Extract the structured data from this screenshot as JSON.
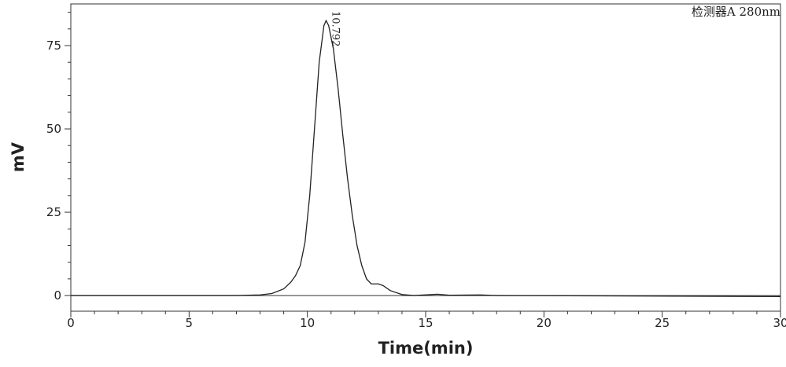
{
  "chart_data": {
    "type": "line",
    "legend_text": "检测器A 280nm",
    "x_label": "Time(min)",
    "y_label": "mV",
    "xlim": [
      0,
      30
    ],
    "ylim": [
      -4.7,
      87.5
    ],
    "xticks": [
      0,
      5,
      10,
      15,
      20,
      25,
      30
    ],
    "yticks": [
      0,
      25,
      50,
      75
    ],
    "xminorticks": [
      1,
      2,
      3,
      4,
      6,
      7,
      8,
      9,
      11,
      12,
      13,
      14,
      16,
      17,
      18,
      19,
      21,
      22,
      23,
      24,
      26,
      27,
      28,
      29
    ],
    "yminorticks": [
      5,
      10,
      15,
      20,
      30,
      35,
      40,
      45,
      55,
      60,
      65,
      70,
      80,
      85
    ],
    "peak_labels": [
      10.792
    ],
    "series": [
      {
        "color": "#222222",
        "x": [
          0,
          7,
          8,
          8.5,
          9,
          9.3,
          9.5,
          9.7,
          9.9,
          10.1,
          10.3,
          10.5,
          10.7,
          10.792,
          10.9,
          11.1,
          11.3,
          11.5,
          11.7,
          11.9,
          12.1,
          12.3,
          12.5,
          12.7,
          13,
          13.2,
          13.5,
          14,
          14.5,
          15.5,
          16,
          17.3,
          18,
          30
        ],
        "values": [
          0,
          0,
          0.2,
          0.6,
          2,
          4,
          6,
          9,
          16,
          30,
          50,
          70,
          81,
          82.5,
          81,
          74,
          62,
          48,
          35,
          24,
          15,
          9,
          5,
          3.5,
          3.5,
          3,
          1.5,
          0.3,
          0,
          0.4,
          0.1,
          0.2,
          0,
          -0.3
        ]
      }
    ]
  }
}
